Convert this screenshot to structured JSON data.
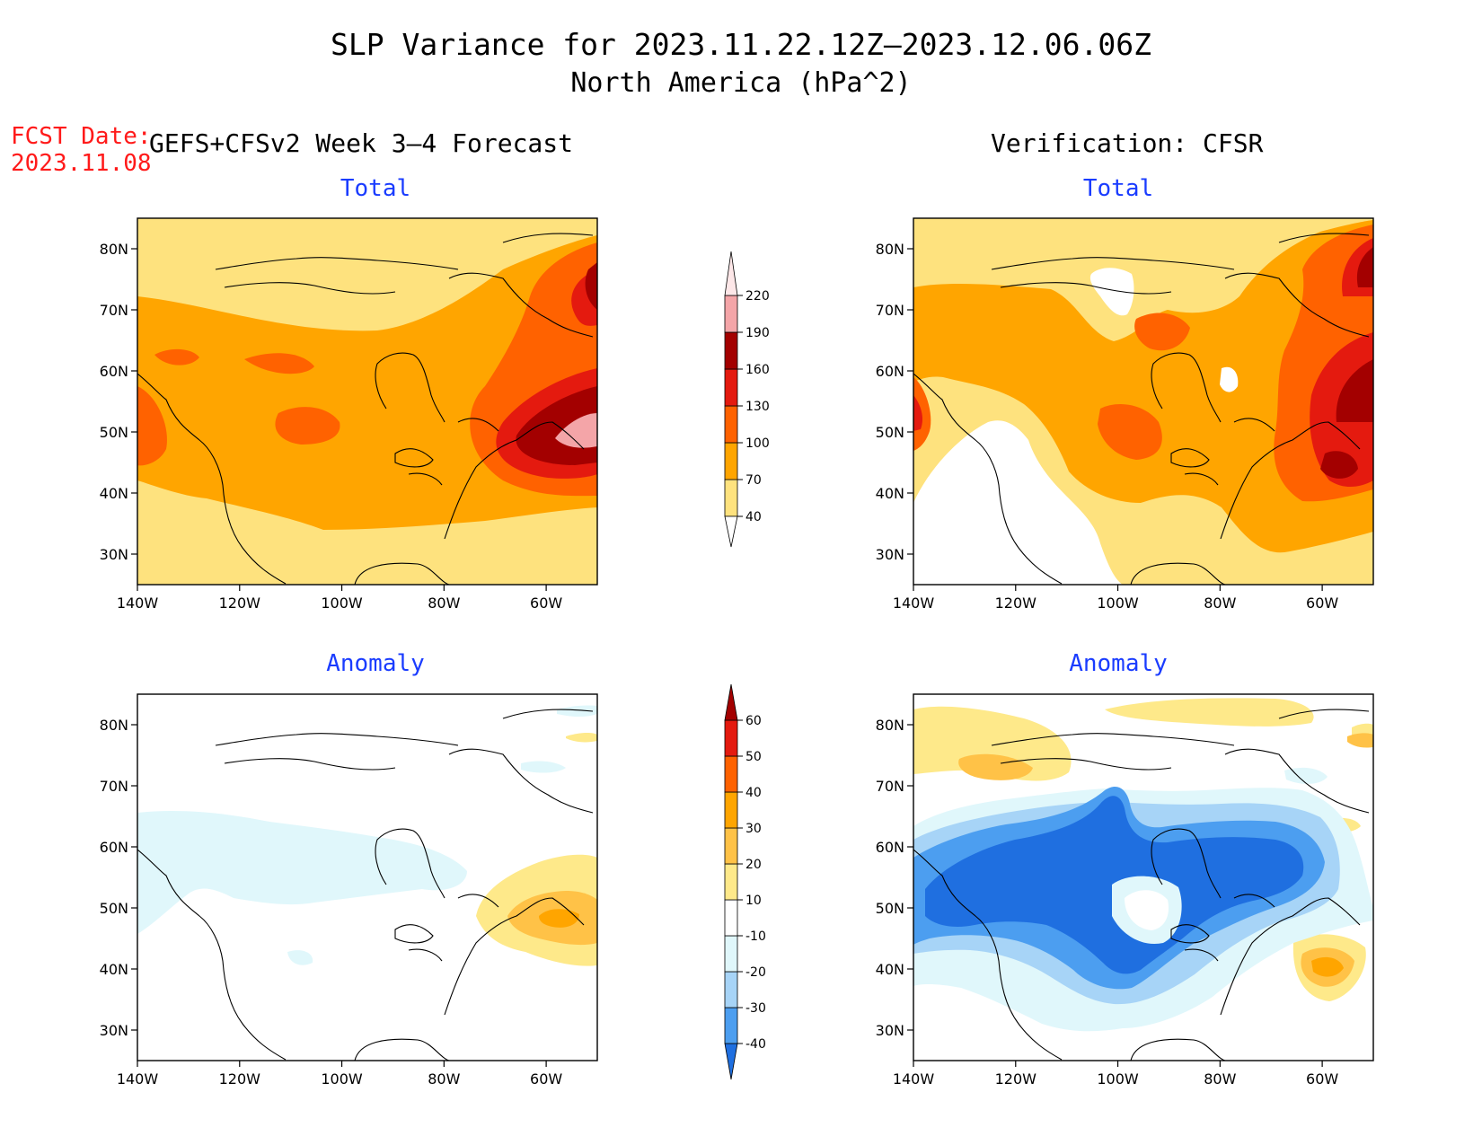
{
  "title": "SLP Variance for 2023.11.22.12Z–2023.12.06.06Z",
  "subtitle": "North America (hPa^2)",
  "fcst_date": {
    "line1": "FCST Date:",
    "line2": "2023.11.08"
  },
  "left_heading": "GEFS+CFSv2 Week 3–4 Forecast",
  "right_heading": "Verification: CFSR",
  "panels": {
    "forecast_total": {
      "title": "Total"
    },
    "verification_total": {
      "title": "Total"
    },
    "forecast_anomaly": {
      "title": "Anomaly"
    },
    "verification_anomaly": {
      "title": "Anomaly"
    }
  },
  "axes": {
    "lon_ticks": [
      "140W",
      "120W",
      "100W",
      "80W",
      "60W"
    ],
    "lat_ticks": [
      "80N",
      "70N",
      "60N",
      "50N",
      "40N",
      "30N"
    ],
    "lon_values": [
      -140,
      -120,
      -100,
      -80,
      -60
    ],
    "lat_values": [
      80,
      70,
      60,
      50,
      40,
      30
    ],
    "lon_range": [
      -140,
      -50
    ],
    "lat_range": [
      25,
      85
    ]
  },
  "colorbar_total": {
    "levels": [
      "40",
      "70",
      "100",
      "130",
      "160",
      "190",
      "220"
    ],
    "colors": [
      "#fee27e",
      "#ffa500",
      "#ff6200",
      "#e41a0f",
      "#a30000",
      "#f4a5a8",
      "#fde7e8"
    ]
  },
  "colorbar_anomaly": {
    "levels": [
      "-40",
      "-30",
      "-20",
      "-10",
      "10",
      "20",
      "30",
      "40",
      "50",
      "60"
    ],
    "colors": [
      "#1f6fe0",
      "#4c9ef0",
      "#a7d4f7",
      "#e0f7fb",
      "#ffffff",
      "#fee98a",
      "#ffc247",
      "#ffa500",
      "#ff6200",
      "#e41a0f",
      "#a30000"
    ]
  },
  "fill_colors": {
    "t40": "#fee27e",
    "t70": "#ffa500",
    "t100": "#ff6200",
    "t130": "#e41a0f",
    "t160": "#a30000",
    "t190": "#f4a5a8",
    "an10": "#e0f7fb",
    "an20": "#a7d4f7",
    "an30": "#4c9ef0",
    "an40": "#1f6fe0",
    "ap10": "#fee98a",
    "ap20": "#ffc247",
    "ap30": "#ffa500",
    "ap40": "#ff6200"
  }
}
